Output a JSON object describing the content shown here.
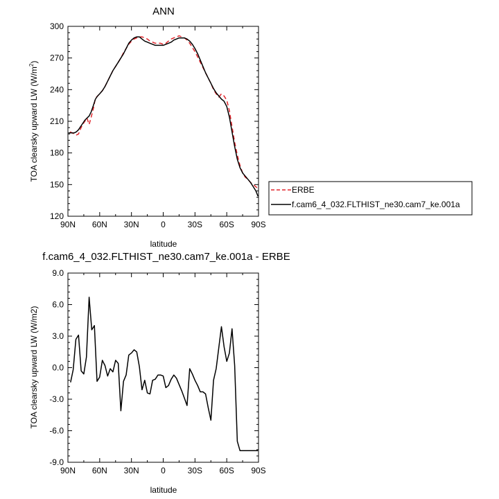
{
  "colors": {
    "erbe": "#e0242a",
    "model": "#000000",
    "axis": "#000000",
    "background": "#ffffff"
  },
  "chart_data": [
    {
      "type": "line",
      "title": "ANN",
      "xlabel": "latitude",
      "ylabel_main": "TOA clearsky upward LW (W/m",
      "ylabel_sup": "2",
      "ylabel_close": ")",
      "xlim": [
        90,
        -90
      ],
      "ylim": [
        120,
        300
      ],
      "x_ticks": [
        90,
        60,
        30,
        0,
        -30,
        -60,
        -90
      ],
      "x_tick_labels": [
        "90N",
        "60N",
        "30N",
        "0",
        "30S",
        "60S",
        "90S"
      ],
      "y_ticks": [
        120,
        150,
        180,
        210,
        240,
        270,
        300
      ],
      "y_tick_labels": [
        "120",
        "150",
        "180",
        "210",
        "240",
        "270",
        "300"
      ],
      "grid": false,
      "legend_placement": "right",
      "series": [
        {
          "name": "ERBE",
          "style": "dashed",
          "x": [
            88,
            86,
            84,
            82,
            80,
            78,
            76,
            74,
            72,
            70,
            68,
            66,
            64,
            62,
            60,
            57.5,
            55,
            52.5,
            50,
            47.5,
            45,
            42.5,
            40,
            37.5,
            35,
            32.5,
            30,
            27.5,
            25,
            22.5,
            20,
            17.5,
            15,
            12.5,
            10,
            7.5,
            5,
            2.5,
            0,
            -2.5,
            -5,
            -7.5,
            -10,
            -12.5,
            -15,
            -17.5,
            -20,
            -22.5,
            -25,
            -27.5,
            -30,
            -32.5,
            -35,
            -37.5,
            -40,
            -42.5,
            -45,
            -47.5,
            -50,
            -52.5,
            -55,
            -57.5,
            -60,
            -62.5,
            -65,
            -67.5,
            -70,
            -72.5,
            -75,
            -77.5,
            -80,
            -82.5,
            -85,
            -87.5,
            -89.5
          ],
          "y": [
            200,
            199,
            198,
            197,
            198,
            203,
            207,
            210,
            213,
            207,
            214,
            222,
            232,
            234,
            236,
            239,
            243,
            248,
            253,
            258,
            262,
            266,
            270,
            275,
            279,
            283,
            286,
            288,
            289,
            290,
            290,
            289,
            288,
            286,
            285,
            284,
            284,
            284,
            283,
            284,
            286,
            288,
            289,
            290,
            291,
            290,
            289,
            287,
            284,
            280,
            276,
            271,
            266,
            261,
            256,
            251,
            246,
            240,
            236,
            233,
            236,
            234,
            230,
            220,
            205,
            190,
            178,
            168,
            161,
            157,
            155,
            152,
            150,
            148,
            146
          ]
        },
        {
          "name": "f.cam6_4_032.FLTHIST_ne30.cam7_ke.001a",
          "style": "solid",
          "x": [
            89.5,
            88,
            86,
            84,
            82,
            80,
            78,
            76,
            74,
            72,
            70,
            68,
            66,
            64,
            62,
            60,
            57.5,
            55,
            52.5,
            50,
            47.5,
            45,
            42.5,
            40,
            37.5,
            35,
            32.5,
            30,
            27.5,
            25,
            22.5,
            20,
            17.5,
            15,
            12.5,
            10,
            7.5,
            5,
            2.5,
            0,
            -2.5,
            -5,
            -7.5,
            -10,
            -12.5,
            -15,
            -17.5,
            -20,
            -22.5,
            -25,
            -27.5,
            -30,
            -32.5,
            -35,
            -37.5,
            -40,
            -42.5,
            -45,
            -47.5,
            -50,
            -52.5,
            -55,
            -57.5,
            -60,
            -62.5,
            -65,
            -67.5,
            -70,
            -72.5,
            -75,
            -77.5,
            -80,
            -82.5,
            -85,
            -87.5,
            -89.5
          ],
          "y": [
            199,
            199,
            199,
            199,
            200,
            202,
            205,
            208,
            211,
            213,
            215,
            219,
            225,
            231,
            234,
            236,
            239,
            243,
            248,
            253,
            258,
            262,
            266,
            270,
            274,
            279,
            284,
            287,
            289,
            290,
            290,
            288,
            286,
            285,
            284,
            283,
            282,
            282,
            282,
            282,
            283,
            284,
            285,
            287,
            288,
            289,
            289,
            289,
            288,
            286,
            283,
            279,
            274,
            268,
            262,
            256,
            251,
            246,
            241,
            237,
            234,
            231,
            229,
            224,
            214,
            200,
            186,
            174,
            166,
            161,
            158,
            155,
            152,
            148,
            144,
            139
          ]
        }
      ]
    },
    {
      "type": "line",
      "title": "f.cam6_4_032.FLTHIST_ne30.cam7_ke.001a - ERBE",
      "xlabel": "latitude",
      "ylabel": "TOA clearsky upward LW (W/m2)",
      "xlim": [
        90,
        -90
      ],
      "ylim": [
        -9,
        9
      ],
      "x_ticks": [
        90,
        60,
        30,
        0,
        -30,
        -60,
        -90
      ],
      "x_tick_labels": [
        "90N",
        "60N",
        "30N",
        "0",
        "30S",
        "60S",
        "90S"
      ],
      "y_ticks": [
        -9,
        -6,
        -3,
        0,
        3,
        6,
        9
      ],
      "y_tick_labels": [
        "-9.0",
        "-6.0",
        "-3.0",
        "0.0",
        "3.0",
        "6.0",
        "9.0"
      ],
      "grid": false,
      "series": [
        {
          "style": "solid",
          "x": [
            87.5,
            85,
            82.5,
            80,
            77.5,
            75,
            72.5,
            70,
            67.5,
            65,
            62.5,
            60,
            57.5,
            55,
            52.5,
            50,
            47.5,
            45,
            42.5,
            40,
            37.5,
            35,
            32.5,
            30,
            27.5,
            25,
            22.5,
            20,
            17.5,
            15,
            12.5,
            10,
            7.5,
            5,
            2.5,
            0,
            -2.5,
            -5,
            -7.5,
            -10,
            -12.5,
            -15,
            -17.5,
            -20,
            -22.5,
            -25,
            -27.5,
            -30,
            -32.5,
            -35,
            -37.5,
            -40,
            -42.5,
            -45,
            -47.5,
            -50,
            -52.5,
            -55,
            -57.5,
            -60,
            -62.5,
            -65,
            -67.5,
            -70,
            -72.5,
            -75,
            -77.5,
            -80,
            -82.5,
            -85,
            -87.5,
            -89.5
          ],
          "y": [
            -1.4,
            -0.2,
            2.7,
            3.1,
            -0.3,
            -0.6,
            1.0,
            6.7,
            3.6,
            4.0,
            -1.3,
            -0.9,
            0.7,
            0.2,
            -0.8,
            -0.1,
            -0.4,
            0.7,
            0.4,
            -4.1,
            -1.3,
            -0.7,
            1.2,
            1.4,
            1.7,
            1.5,
            0.1,
            -2.1,
            -1.2,
            -2.4,
            -2.5,
            -1.2,
            -1.1,
            -0.7,
            -0.7,
            -0.8,
            -1.9,
            -1.7,
            -1.1,
            -0.7,
            -1.0,
            -1.6,
            -2.2,
            -2.9,
            -3.6,
            -0.1,
            -0.6,
            -1.2,
            -1.7,
            -2.3,
            -2.3,
            -2.5,
            -3.8,
            -5.0,
            -1.2,
            -0.1,
            1.9,
            3.9,
            2.0,
            0.6,
            1.4,
            3.7,
            0.2,
            -7.0,
            -7.9,
            -7.9,
            -7.9,
            -7.9,
            -7.9,
            -7.9,
            -7.9,
            -7.9
          ]
        }
      ]
    }
  ]
}
